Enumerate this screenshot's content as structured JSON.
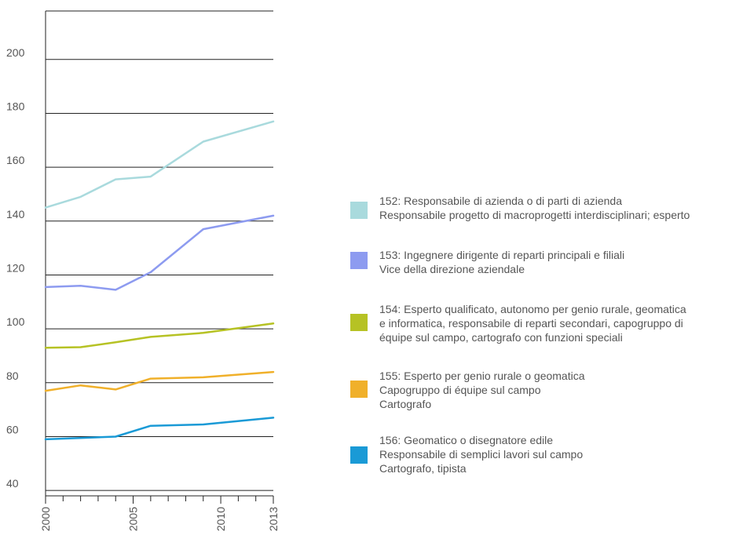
{
  "chart_data": {
    "type": "line",
    "x": [
      2000,
      2002,
      2004,
      2006,
      2009,
      2013
    ],
    "x_tick_labels": [
      "2000",
      "2005",
      "2010",
      "2013"
    ],
    "ylim": [
      38,
      218
    ],
    "y_ticks": [
      40,
      60,
      80,
      100,
      120,
      140,
      160,
      180,
      200
    ],
    "grid": true,
    "legend_position": "right",
    "series": [
      {
        "id": "152",
        "color": "#a9dadd",
        "values": [
          145,
          149,
          155.5,
          156.5,
          169.5,
          177
        ],
        "legend_lines": [
          "152: Responsabile di azienda o di parti di azienda",
          "Responsabile progetto di macroprogetti interdisciplinari; esperto"
        ]
      },
      {
        "id": "153",
        "color": "#8d9bf0",
        "values": [
          115.5,
          116,
          114.5,
          121,
          137,
          142
        ],
        "legend_lines": [
          "153: Ingegnere dirigente di reparti principali e filiali",
          "Vice della direzione aziendale"
        ]
      },
      {
        "id": "154",
        "color": "#b6c224",
        "values": [
          93,
          93.2,
          95,
          97,
          98.5,
          102
        ],
        "legend_lines": [
          "154: Esperto qualificato, autonomo per genio rurale, geomatica",
          "e informatica, responsabile di reparti secondari, capogruppo di",
          "équipe sul campo, cartografo con funzioni speciali"
        ]
      },
      {
        "id": "155",
        "color": "#f0b02a",
        "values": [
          77,
          79,
          77.5,
          81.5,
          82,
          84
        ],
        "legend_lines": [
          "155: Esperto per genio rurale o geomatica",
          "Capogruppo di équipe sul campo",
          "Cartografo"
        ]
      },
      {
        "id": "156",
        "color": "#1a9ad6",
        "values": [
          59,
          59.5,
          60,
          64,
          64.5,
          67
        ],
        "legend_lines": [
          "156: Geomatico o disegnatore edile",
          "Responsabile di semplici lavori sul campo",
          "Cartografo, tipista"
        ]
      }
    ]
  }
}
